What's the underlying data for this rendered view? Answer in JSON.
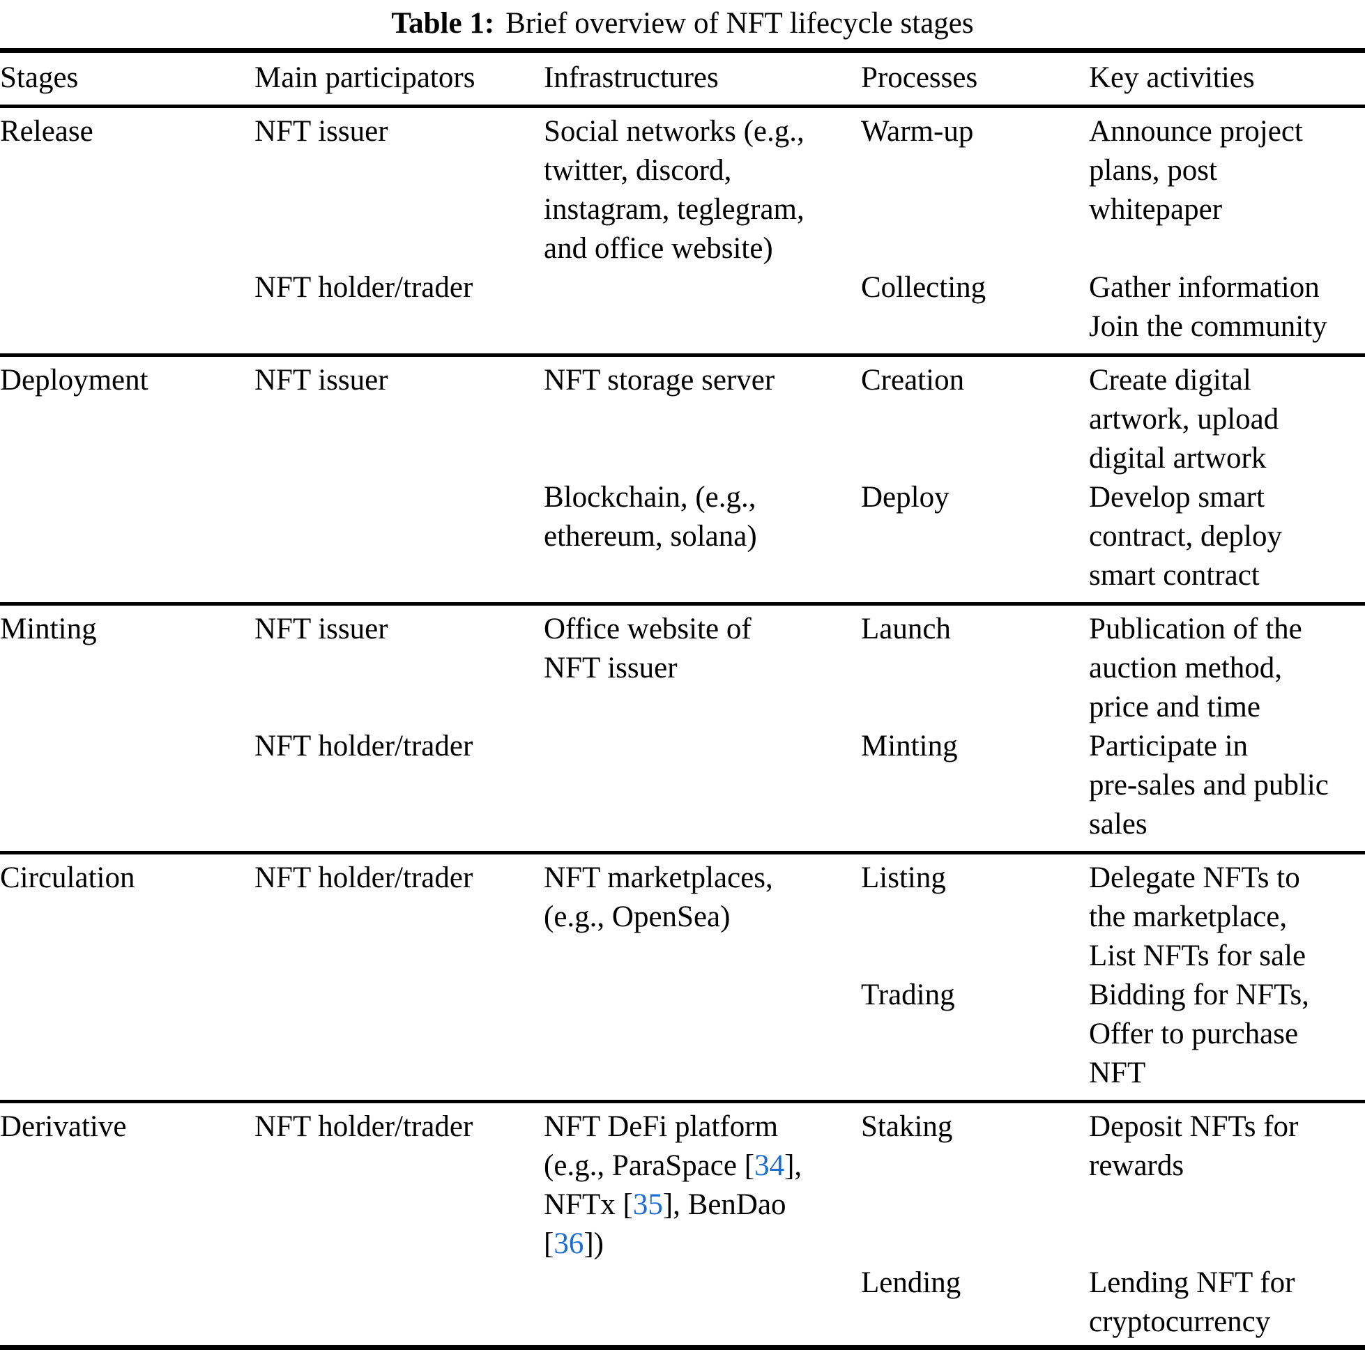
{
  "caption": {
    "label": "Table 1:",
    "text": "Brief overview of NFT lifecycle stages"
  },
  "colors": {
    "citation": "#1a6dd4",
    "text": "#000000",
    "rule": "#000000"
  },
  "table": {
    "headers": [
      "Stages",
      "Main participators",
      "Infrastructures",
      "Processes",
      "Key activities"
    ],
    "stages": [
      {
        "name": "Release",
        "rows": [
          {
            "participator": "NFT issuer",
            "infrastructure": "Social networks (e.g.,\ntwitter, discord,\ninstagram, teglegram,\nand office website)",
            "process": "Warm-up",
            "activities": "Announce project\nplans, post\nwhitepaper"
          },
          {
            "participator": "NFT holder/trader",
            "infrastructure": "",
            "process": "Collecting",
            "activities": "Gather information\nJoin the community"
          }
        ]
      },
      {
        "name": "Deployment",
        "rows": [
          {
            "participator": "NFT issuer",
            "infrastructure": "NFT storage server",
            "process": "Creation",
            "activities": "Create digital\nartwork, upload\ndigital artwork"
          },
          {
            "participator": "",
            "infrastructure": "Blockchain, (e.g.,\nethereum, solana)",
            "process": "Deploy",
            "activities": "Develop smart\ncontract, deploy\nsmart contract"
          }
        ]
      },
      {
        "name": "Minting",
        "rows": [
          {
            "participator": "NFT issuer",
            "infrastructure": "Office website of\nNFT issuer",
            "process": "Launch",
            "activities": "Publication of the\nauction method,\nprice and time"
          },
          {
            "participator": "NFT holder/trader",
            "infrastructure": "",
            "process": "Minting",
            "activities": "Participate in\npre-sales and public\nsales"
          }
        ]
      },
      {
        "name": "Circulation",
        "rows": [
          {
            "participator": "NFT holder/trader",
            "infrastructure": "NFT marketplaces,\n(e.g., OpenSea)",
            "process": "Listing",
            "activities": "Delegate NFTs to\nthe marketplace,\nList NFTs for sale"
          },
          {
            "participator": "",
            "infrastructure": "",
            "process": "Trading",
            "activities": "Bidding for NFTs,\nOffer to purchase\nNFT"
          }
        ]
      },
      {
        "name": "Derivative",
        "rows": [
          {
            "participator": "NFT holder/trader",
            "infrastructure": [
              {
                "text": "NFT DeFi platform\n(e.g., ParaSpace ["
              },
              {
                "text": "34",
                "type": "citation"
              },
              {
                "text": "],\nNFTx ["
              },
              {
                "text": "35",
                "type": "citation"
              },
              {
                "text": "], BenDao\n["
              },
              {
                "text": "36",
                "type": "citation"
              },
              {
                "text": "])"
              }
            ],
            "process": "Staking",
            "activities": "Deposit NFTs for\nrewards"
          },
          {
            "participator": "",
            "infrastructure": "",
            "process": "Lending",
            "activities": "Lending NFT for\ncryptocurrency"
          }
        ]
      }
    ]
  }
}
